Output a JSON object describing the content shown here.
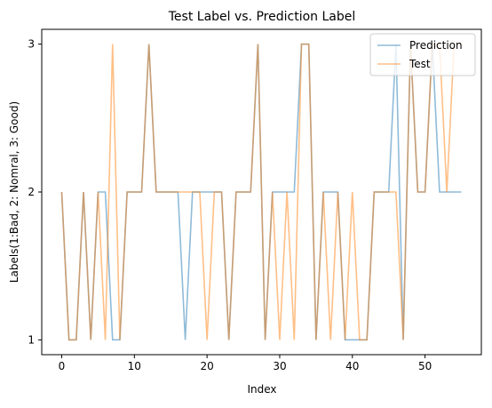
{
  "chart_data": {
    "type": "line",
    "title": "Test Label vs. Prediction Label",
    "xlabel": "Index",
    "ylabel": "Labels(1:Bad, 2: Nomral, 3: Good)",
    "xlim": [
      -2.75,
      57.75
    ],
    "ylim": [
      3.1,
      0.9
    ],
    "y_inverted": true,
    "x_ticks": [
      0,
      10,
      20,
      30,
      40,
      50
    ],
    "y_ticks": [
      1,
      2,
      3
    ],
    "grid": false,
    "legend_position": "top-right",
    "x": [
      0,
      1,
      2,
      3,
      4,
      5,
      6,
      7,
      8,
      9,
      10,
      11,
      12,
      13,
      14,
      15,
      16,
      17,
      18,
      19,
      20,
      21,
      22,
      23,
      24,
      25,
      26,
      27,
      28,
      29,
      30,
      31,
      32,
      33,
      34,
      35,
      36,
      37,
      38,
      39,
      40,
      41,
      42,
      43,
      44,
      45,
      46,
      47,
      48,
      49,
      50,
      51,
      52,
      53,
      54,
      55
    ],
    "series": [
      {
        "name": "Prediction",
        "color": "#1f77b4",
        "opacity": 0.5,
        "values": [
          2,
          1,
          1,
          2,
          1,
          2,
          2,
          1,
          1,
          2,
          2,
          2,
          3,
          2,
          2,
          2,
          2,
          1,
          2,
          2,
          2,
          2,
          2,
          1,
          2,
          2,
          2,
          3,
          1,
          2,
          2,
          2,
          2,
          3,
          3,
          1,
          2,
          2,
          2,
          1,
          1,
          1,
          1,
          2,
          2,
          2,
          3,
          1,
          3,
          2,
          2,
          3,
          2,
          2,
          2,
          2
        ]
      },
      {
        "name": "Test",
        "color": "#ff7f0e",
        "opacity": 0.5,
        "values": [
          2,
          1,
          1,
          2,
          1,
          2,
          1,
          3,
          1,
          2,
          2,
          2,
          3,
          2,
          2,
          2,
          2,
          2,
          2,
          2,
          1,
          2,
          2,
          1,
          2,
          2,
          2,
          3,
          1,
          2,
          1,
          2,
          1,
          3,
          3,
          1,
          2,
          1,
          2,
          1,
          2,
          1,
          1,
          2,
          2,
          2,
          2,
          1,
          3,
          2,
          2,
          3,
          3,
          2,
          3,
          3
        ]
      }
    ]
  }
}
